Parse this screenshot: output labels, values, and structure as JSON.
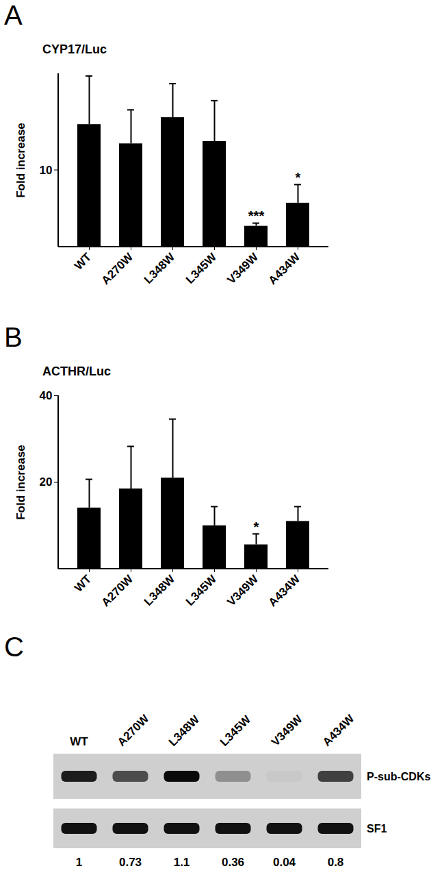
{
  "chart_data": [
    {
      "type": "bar",
      "panel": "A",
      "title": "CYP17/Luc",
      "y_label": "Fold increase",
      "categories": [
        "WT",
        "A270W",
        "L348W",
        "L345W",
        "V349W",
        "A434W"
      ],
      "values": [
        15.9,
        13.4,
        16.8,
        13.7,
        2.7,
        5.7
      ],
      "errors": [
        6.3,
        4.4,
        4.4,
        5.3,
        0.4,
        2.4
      ],
      "annotations": [
        {
          "category": "V349W",
          "label": "***"
        },
        {
          "category": "A434W",
          "label": "*"
        }
      ],
      "color": "#000000",
      "ylim": [
        0,
        22.5
      ],
      "yticks": [
        10
      ],
      "grid": false
    },
    {
      "type": "bar",
      "panel": "B",
      "title": "ACTHR/Luc",
      "y_label": "Fold increase",
      "categories": [
        "WT",
        "A270W",
        "L348W",
        "L345W",
        "V349W",
        "A434W"
      ],
      "values": [
        14.1,
        18.5,
        21,
        10,
        5.6,
        11
      ],
      "errors": [
        6.6,
        9.8,
        13.6,
        4.4,
        2.5,
        3.4
      ],
      "annotations": [
        {
          "category": "V349W",
          "label": "*"
        }
      ],
      "color": "#000000",
      "ylim": [
        0,
        40
      ],
      "yticks": [
        20,
        40
      ],
      "grid": false
    }
  ],
  "blot": {
    "panel": "C",
    "lanes": [
      "WT",
      "A270W",
      "L348W",
      "L345W",
      "V349W",
      "A434W"
    ],
    "rows": [
      "P-sub-CDKs",
      "SF1"
    ],
    "quantification": [
      1,
      0.73,
      1.1,
      0.36,
      0.04,
      0.8
    ]
  }
}
